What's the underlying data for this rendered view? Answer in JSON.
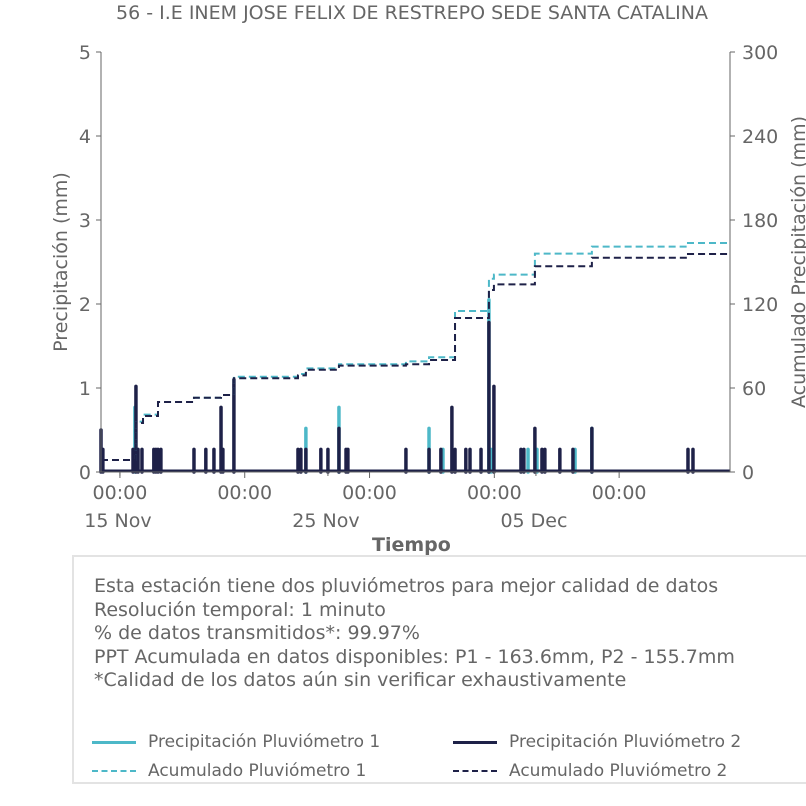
{
  "chart_data": {
    "type": "bar",
    "title": "56 - I.E INEM JOSE FELIX DE RESTREPO SEDE SANTA CATALINA",
    "xlabel": "Tiempo",
    "ylabel": "Precipitación (mm)",
    "y2label": "Acumulado Precipitación (mm)",
    "x_unit": "days since 15 Nov 00:00",
    "xlim": [
      -0.91,
      29.33
    ],
    "ylim": [
      0,
      5
    ],
    "y2lim": [
      0,
      300
    ],
    "yticks": [
      0,
      1,
      2,
      3,
      4,
      5
    ],
    "y2ticks": [
      0,
      60,
      120,
      180,
      240,
      300
    ],
    "xticks_major": [
      {
        "x": 0,
        "label": "00:00"
      },
      {
        "x": 6,
        "label": "00:00"
      },
      {
        "x": 12,
        "label": "00:00"
      },
      {
        "x": 18,
        "label": "00:00"
      },
      {
        "x": 24,
        "label": "00:00"
      }
    ],
    "xticks_minor": [
      {
        "x": 0,
        "label": "15 Nov"
      },
      {
        "x": 10,
        "label": "25 Nov"
      },
      {
        "x": 20,
        "label": "05 Dec"
      }
    ],
    "grid": false,
    "series": [
      {
        "name": "Precipitación Pluviómetro 1",
        "kind": "bar",
        "color": "#4db8c8",
        "points": [
          [
            0.72,
            0.77
          ],
          [
            8.94,
            0.52
          ],
          [
            10.53,
            0.77
          ],
          [
            14.86,
            0.52
          ],
          [
            15.53,
            0.27
          ],
          [
            17.74,
            2.05
          ],
          [
            17.84,
            0.27
          ],
          [
            19.62,
            0.27
          ],
          [
            20.05,
            0.27
          ],
          [
            21.88,
            0.27
          ],
          [
            22.69,
            0.52
          ]
        ]
      },
      {
        "name": "Precipitación Pluviómetro 2",
        "kind": "bar",
        "color": "#1e2148",
        "points": [
          [
            -0.91,
            0.5
          ],
          [
            -0.82,
            0.27
          ],
          [
            0.63,
            0.27
          ],
          [
            0.77,
            1.02
          ],
          [
            0.87,
            0.27
          ],
          [
            1.06,
            0.27
          ],
          [
            1.63,
            0.27
          ],
          [
            1.73,
            0.27
          ],
          [
            1.83,
            0.27
          ],
          [
            1.97,
            0.27
          ],
          [
            3.56,
            0.27
          ],
          [
            4.13,
            0.27
          ],
          [
            4.52,
            0.27
          ],
          [
            4.86,
            0.77
          ],
          [
            4.95,
            0.27
          ],
          [
            5.48,
            1.1
          ],
          [
            8.56,
            0.27
          ],
          [
            8.7,
            0.27
          ],
          [
            8.94,
            0.27
          ],
          [
            9.66,
            0.27
          ],
          [
            10.0,
            0.27
          ],
          [
            10.53,
            0.52
          ],
          [
            10.87,
            0.27
          ],
          [
            10.96,
            0.27
          ],
          [
            13.75,
            0.27
          ],
          [
            14.86,
            0.27
          ],
          [
            15.43,
            0.27
          ],
          [
            15.96,
            0.77
          ],
          [
            16.11,
            0.27
          ],
          [
            16.63,
            0.27
          ],
          [
            16.83,
            0.27
          ],
          [
            17.36,
            0.27
          ],
          [
            17.74,
            1.78
          ],
          [
            17.98,
            1.02
          ],
          [
            19.28,
            0.27
          ],
          [
            19.42,
            0.27
          ],
          [
            19.95,
            0.52
          ],
          [
            20.29,
            0.27
          ],
          [
            20.43,
            0.27
          ],
          [
            21.15,
            0.27
          ],
          [
            21.78,
            0.27
          ],
          [
            22.69,
            0.52
          ],
          [
            27.31,
            0.27
          ],
          [
            27.55,
            0.27
          ]
        ]
      },
      {
        "name": "Acumulado Pluviómetro 1",
        "kind": "step",
        "axis": "right",
        "color": "#4db8c8",
        "points": [
          [
            -0.91,
            8.6
          ],
          [
            0.77,
            36
          ],
          [
            1.11,
            41
          ],
          [
            1.83,
            50
          ],
          [
            3.56,
            53
          ],
          [
            4.86,
            55
          ],
          [
            5.48,
            68
          ],
          [
            8.56,
            70
          ],
          [
            8.94,
            74
          ],
          [
            10.53,
            77
          ],
          [
            13.75,
            79
          ],
          [
            14.86,
            82
          ],
          [
            16.11,
            115
          ],
          [
            17.74,
            138
          ],
          [
            17.98,
            141
          ],
          [
            19.95,
            156
          ],
          [
            22.69,
            161
          ],
          [
            27.31,
            163.6
          ],
          [
            29.33,
            163.6
          ]
        ]
      },
      {
        "name": "Acumulado Pluviómetro 2",
        "kind": "step",
        "axis": "right",
        "color": "#1e2148",
        "points": [
          [
            -0.91,
            8.6
          ],
          [
            0.77,
            35
          ],
          [
            1.11,
            40
          ],
          [
            1.83,
            50
          ],
          [
            3.56,
            53
          ],
          [
            4.86,
            55
          ],
          [
            5.48,
            67
          ],
          [
            8.56,
            69
          ],
          [
            8.94,
            73
          ],
          [
            10.53,
            76
          ],
          [
            13.75,
            77
          ],
          [
            14.86,
            80
          ],
          [
            16.11,
            110
          ],
          [
            17.74,
            130
          ],
          [
            17.98,
            134
          ],
          [
            19.95,
            147
          ],
          [
            22.69,
            153
          ],
          [
            27.31,
            155.7
          ],
          [
            29.33,
            155.7
          ]
        ]
      }
    ],
    "legend_position": "bottom"
  },
  "info": {
    "lines": [
      "Esta estación tiene dos pluviómetros para mejor calidad de datos",
      "Resolución temporal: 1 minuto",
      "% de datos transmitidos*: 99.97%",
      "PPT Acumulada en datos disponibles: P1 - 163.6mm, P2 - 155.7mm",
      "*Calidad de los datos aún sin verificar exhaustivamente"
    ]
  },
  "legend": [
    {
      "label": "Precipitación Pluviómetro 1",
      "color": "#4db8c8",
      "style": "solid"
    },
    {
      "label": "Precipitación Pluviómetro 2",
      "color": "#1e2148",
      "style": "solid"
    },
    {
      "label": "Acumulado Pluviómetro 1",
      "color": "#4db8c8",
      "style": "dashed"
    },
    {
      "label": "Acumulado Pluviómetro 2",
      "color": "#1e2148",
      "style": "dashed"
    }
  ]
}
